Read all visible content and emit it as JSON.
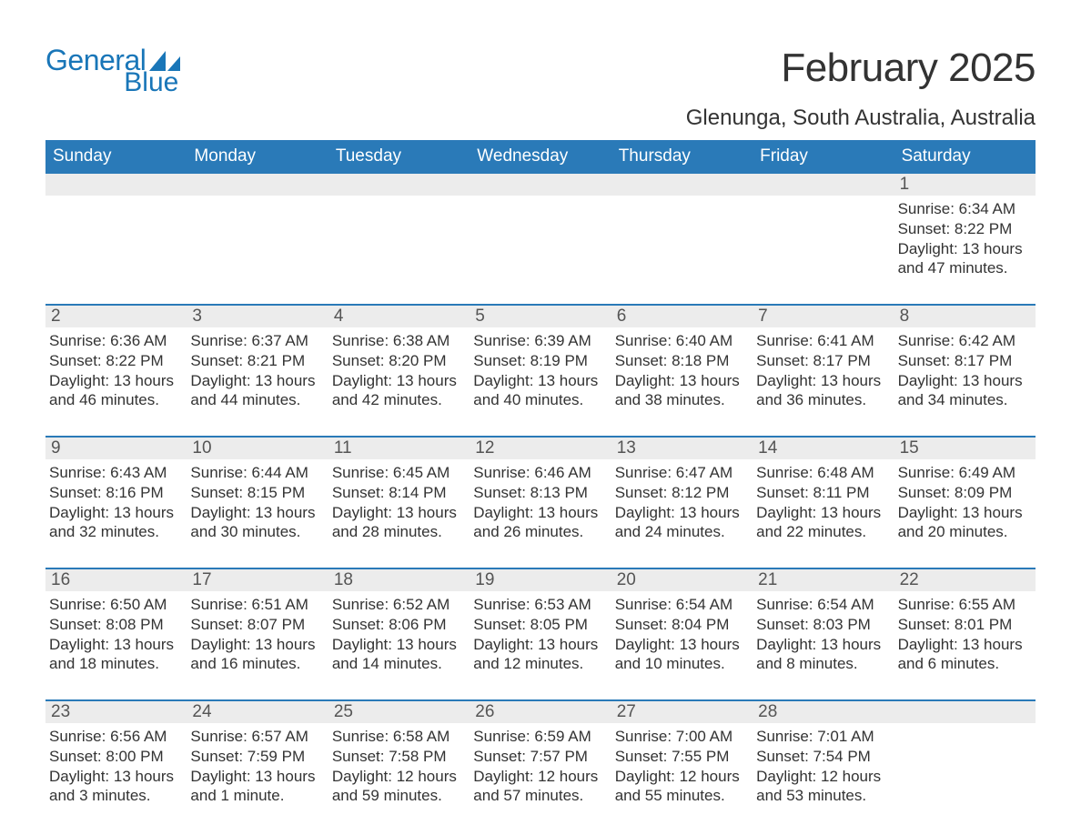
{
  "brand": {
    "word1": "General",
    "word2": "Blue",
    "logo_color": "#1976b8"
  },
  "header": {
    "month_title": "February 2025",
    "location": "Glenunga, South Australia, Australia"
  },
  "colors": {
    "header_bg": "#2a7ab8",
    "header_text": "#ffffff",
    "daybar_bg": "#ececec",
    "row_border": "#2a7ab8",
    "text": "#333333",
    "page_bg": "#ffffff"
  },
  "typography": {
    "title_fontsize": 44,
    "location_fontsize": 24,
    "weekday_fontsize": 19,
    "daynum_fontsize": 19,
    "body_fontsize": 17
  },
  "weekdays": [
    "Sunday",
    "Monday",
    "Tuesday",
    "Wednesday",
    "Thursday",
    "Friday",
    "Saturday"
  ],
  "weeks": [
    [
      {
        "empty": true
      },
      {
        "empty": true
      },
      {
        "empty": true
      },
      {
        "empty": true
      },
      {
        "empty": true
      },
      {
        "empty": true
      },
      {
        "day": "1",
        "sunrise": "Sunrise: 6:34 AM",
        "sunset": "Sunset: 8:22 PM",
        "daylight1": "Daylight: 13 hours",
        "daylight2": "and 47 minutes."
      }
    ],
    [
      {
        "day": "2",
        "sunrise": "Sunrise: 6:36 AM",
        "sunset": "Sunset: 8:22 PM",
        "daylight1": "Daylight: 13 hours",
        "daylight2": "and 46 minutes."
      },
      {
        "day": "3",
        "sunrise": "Sunrise: 6:37 AM",
        "sunset": "Sunset: 8:21 PM",
        "daylight1": "Daylight: 13 hours",
        "daylight2": "and 44 minutes."
      },
      {
        "day": "4",
        "sunrise": "Sunrise: 6:38 AM",
        "sunset": "Sunset: 8:20 PM",
        "daylight1": "Daylight: 13 hours",
        "daylight2": "and 42 minutes."
      },
      {
        "day": "5",
        "sunrise": "Sunrise: 6:39 AM",
        "sunset": "Sunset: 8:19 PM",
        "daylight1": "Daylight: 13 hours",
        "daylight2": "and 40 minutes."
      },
      {
        "day": "6",
        "sunrise": "Sunrise: 6:40 AM",
        "sunset": "Sunset: 8:18 PM",
        "daylight1": "Daylight: 13 hours",
        "daylight2": "and 38 minutes."
      },
      {
        "day": "7",
        "sunrise": "Sunrise: 6:41 AM",
        "sunset": "Sunset: 8:17 PM",
        "daylight1": "Daylight: 13 hours",
        "daylight2": "and 36 minutes."
      },
      {
        "day": "8",
        "sunrise": "Sunrise: 6:42 AM",
        "sunset": "Sunset: 8:17 PM",
        "daylight1": "Daylight: 13 hours",
        "daylight2": "and 34 minutes."
      }
    ],
    [
      {
        "day": "9",
        "sunrise": "Sunrise: 6:43 AM",
        "sunset": "Sunset: 8:16 PM",
        "daylight1": "Daylight: 13 hours",
        "daylight2": "and 32 minutes."
      },
      {
        "day": "10",
        "sunrise": "Sunrise: 6:44 AM",
        "sunset": "Sunset: 8:15 PM",
        "daylight1": "Daylight: 13 hours",
        "daylight2": "and 30 minutes."
      },
      {
        "day": "11",
        "sunrise": "Sunrise: 6:45 AM",
        "sunset": "Sunset: 8:14 PM",
        "daylight1": "Daylight: 13 hours",
        "daylight2": "and 28 minutes."
      },
      {
        "day": "12",
        "sunrise": "Sunrise: 6:46 AM",
        "sunset": "Sunset: 8:13 PM",
        "daylight1": "Daylight: 13 hours",
        "daylight2": "and 26 minutes."
      },
      {
        "day": "13",
        "sunrise": "Sunrise: 6:47 AM",
        "sunset": "Sunset: 8:12 PM",
        "daylight1": "Daylight: 13 hours",
        "daylight2": "and 24 minutes."
      },
      {
        "day": "14",
        "sunrise": "Sunrise: 6:48 AM",
        "sunset": "Sunset: 8:11 PM",
        "daylight1": "Daylight: 13 hours",
        "daylight2": "and 22 minutes."
      },
      {
        "day": "15",
        "sunrise": "Sunrise: 6:49 AM",
        "sunset": "Sunset: 8:09 PM",
        "daylight1": "Daylight: 13 hours",
        "daylight2": "and 20 minutes."
      }
    ],
    [
      {
        "day": "16",
        "sunrise": "Sunrise: 6:50 AM",
        "sunset": "Sunset: 8:08 PM",
        "daylight1": "Daylight: 13 hours",
        "daylight2": "and 18 minutes."
      },
      {
        "day": "17",
        "sunrise": "Sunrise: 6:51 AM",
        "sunset": "Sunset: 8:07 PM",
        "daylight1": "Daylight: 13 hours",
        "daylight2": "and 16 minutes."
      },
      {
        "day": "18",
        "sunrise": "Sunrise: 6:52 AM",
        "sunset": "Sunset: 8:06 PM",
        "daylight1": "Daylight: 13 hours",
        "daylight2": "and 14 minutes."
      },
      {
        "day": "19",
        "sunrise": "Sunrise: 6:53 AM",
        "sunset": "Sunset: 8:05 PM",
        "daylight1": "Daylight: 13 hours",
        "daylight2": "and 12 minutes."
      },
      {
        "day": "20",
        "sunrise": "Sunrise: 6:54 AM",
        "sunset": "Sunset: 8:04 PM",
        "daylight1": "Daylight: 13 hours",
        "daylight2": "and 10 minutes."
      },
      {
        "day": "21",
        "sunrise": "Sunrise: 6:54 AM",
        "sunset": "Sunset: 8:03 PM",
        "daylight1": "Daylight: 13 hours",
        "daylight2": "and 8 minutes."
      },
      {
        "day": "22",
        "sunrise": "Sunrise: 6:55 AM",
        "sunset": "Sunset: 8:01 PM",
        "daylight1": "Daylight: 13 hours",
        "daylight2": "and 6 minutes."
      }
    ],
    [
      {
        "day": "23",
        "sunrise": "Sunrise: 6:56 AM",
        "sunset": "Sunset: 8:00 PM",
        "daylight1": "Daylight: 13 hours",
        "daylight2": "and 3 minutes."
      },
      {
        "day": "24",
        "sunrise": "Sunrise: 6:57 AM",
        "sunset": "Sunset: 7:59 PM",
        "daylight1": "Daylight: 13 hours",
        "daylight2": "and 1 minute."
      },
      {
        "day": "25",
        "sunrise": "Sunrise: 6:58 AM",
        "sunset": "Sunset: 7:58 PM",
        "daylight1": "Daylight: 12 hours",
        "daylight2": "and 59 minutes."
      },
      {
        "day": "26",
        "sunrise": "Sunrise: 6:59 AM",
        "sunset": "Sunset: 7:57 PM",
        "daylight1": "Daylight: 12 hours",
        "daylight2": "and 57 minutes."
      },
      {
        "day": "27",
        "sunrise": "Sunrise: 7:00 AM",
        "sunset": "Sunset: 7:55 PM",
        "daylight1": "Daylight: 12 hours",
        "daylight2": "and 55 minutes."
      },
      {
        "day": "28",
        "sunrise": "Sunrise: 7:01 AM",
        "sunset": "Sunset: 7:54 PM",
        "daylight1": "Daylight: 12 hours",
        "daylight2": "and 53 minutes."
      },
      {
        "empty": true
      }
    ]
  ]
}
